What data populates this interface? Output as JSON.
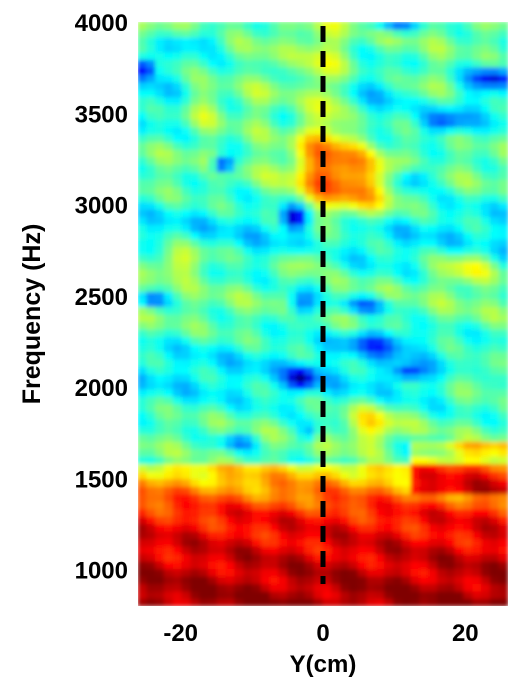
{
  "chart_data": {
    "type": "heatmap",
    "title": "",
    "xlabel": "Y(cm)",
    "ylabel": "Frequency (Hz)",
    "xlim": [
      -26,
      26
    ],
    "ylim": [
      800,
      4000
    ],
    "x_ticks": [
      -20,
      0,
      20
    ],
    "y_ticks": [
      1000,
      1500,
      2000,
      2500,
      3000,
      3500,
      4000
    ],
    "colormap": "jet",
    "colorbar": false,
    "grid": false,
    "reference_line": {
      "x": 0,
      "style": "dashed",
      "color": "#000000"
    }
  }
}
